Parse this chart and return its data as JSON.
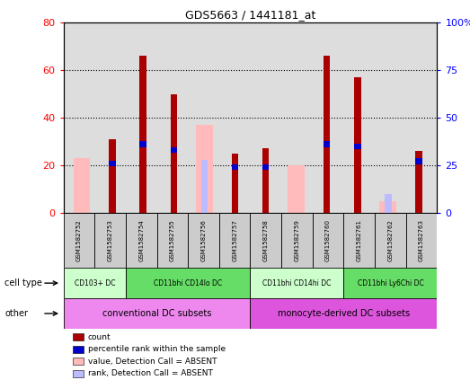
{
  "title": "GDS5663 / 1441181_at",
  "samples": [
    "GSM1582752",
    "GSM1582753",
    "GSM1582754",
    "GSM1582755",
    "GSM1582756",
    "GSM1582757",
    "GSM1582758",
    "GSM1582759",
    "GSM1582760",
    "GSM1582761",
    "GSM1582762",
    "GSM1582763"
  ],
  "count_values": [
    null,
    31,
    66,
    50,
    null,
    25,
    27,
    null,
    66,
    57,
    null,
    26
  ],
  "percentile_values": [
    null,
    26,
    36,
    33,
    null,
    24,
    24,
    null,
    36,
    35,
    null,
    27
  ],
  "absent_value_values": [
    23,
    null,
    null,
    null,
    37,
    null,
    null,
    20,
    null,
    null,
    5,
    null
  ],
  "absent_rank_values": [
    null,
    null,
    null,
    null,
    28,
    null,
    null,
    null,
    null,
    null,
    10,
    null
  ],
  "red_color": "#aa0000",
  "blue_color": "#0000cc",
  "pink_color": "#ffbbbb",
  "light_blue_color": "#bbbbff",
  "ylim_left": [
    0,
    80
  ],
  "ylim_right": [
    0,
    100
  ],
  "yticks_left": [
    0,
    20,
    40,
    60,
    80
  ],
  "yticks_right": [
    0,
    25,
    50,
    75,
    100
  ],
  "cell_type_groups": [
    {
      "label": "CD103+ DC",
      "start": 0,
      "end": 2,
      "color": "#ccffcc"
    },
    {
      "label": "CD11bhi CD14lo DC",
      "start": 2,
      "end": 6,
      "color": "#66dd66"
    },
    {
      "label": "CD11bhi CD14hi DC",
      "start": 6,
      "end": 9,
      "color": "#ccffcc"
    },
    {
      "label": "CD11bhi Ly6Chi DC",
      "start": 9,
      "end": 12,
      "color": "#66dd66"
    }
  ],
  "other_groups": [
    {
      "label": "conventional DC subsets",
      "start": 0,
      "end": 6,
      "color": "#ee88ee"
    },
    {
      "label": "monocyte-derived DC subsets",
      "start": 6,
      "end": 12,
      "color": "#dd55dd"
    }
  ],
  "plot_bg_color": "#dddddd",
  "legend_items": [
    {
      "label": "count",
      "color": "#aa0000"
    },
    {
      "label": "percentile rank within the sample",
      "color": "#0000cc"
    },
    {
      "label": "value, Detection Call = ABSENT",
      "color": "#ffbbbb"
    },
    {
      "label": "rank, Detection Call = ABSENT",
      "color": "#bbbbff"
    }
  ]
}
